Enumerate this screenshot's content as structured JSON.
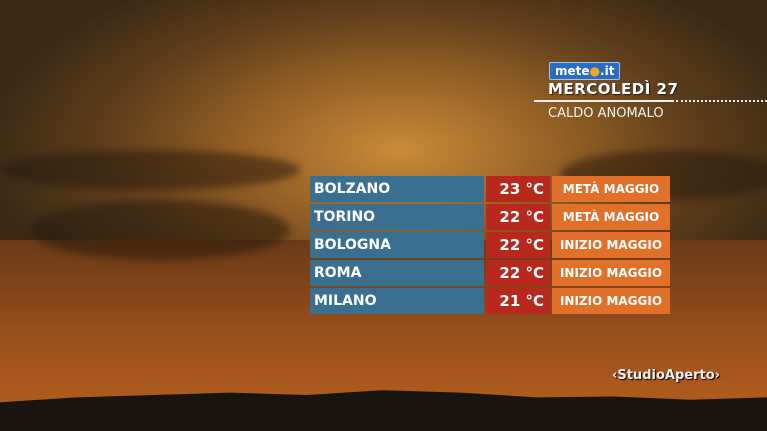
{
  "header": {
    "logo": "meteo.it",
    "logo_prefix": "mete",
    "logo_dot": "●",
    "logo_suffix": ".it",
    "day": "MERCOLEDÌ 27",
    "subtitle": "CALDO ANOMALO"
  },
  "rows": [
    {
      "city": "BOLZANO",
      "temp": "23 °C",
      "period": "METÀ MAGGIO"
    },
    {
      "city": "TORINO",
      "temp": "22 °C",
      "period": "METÀ MAGGIO"
    },
    {
      "city": "BOLOGNA",
      "temp": "22 °C",
      "period": "INIZIO MAGGIO"
    },
    {
      "city": "ROMA",
      "temp": "22 °C",
      "period": "INIZIO MAGGIO"
    },
    {
      "city": "MILANO",
      "temp": "21 °C",
      "period": "INIZIO MAGGIO"
    }
  ],
  "channel": {
    "logo": "‹StudioAperto›",
    "name": "StudioAperto"
  },
  "colors": {
    "city": "#3b6f8f",
    "temp": "#b8281c",
    "period": "#e0702a"
  }
}
